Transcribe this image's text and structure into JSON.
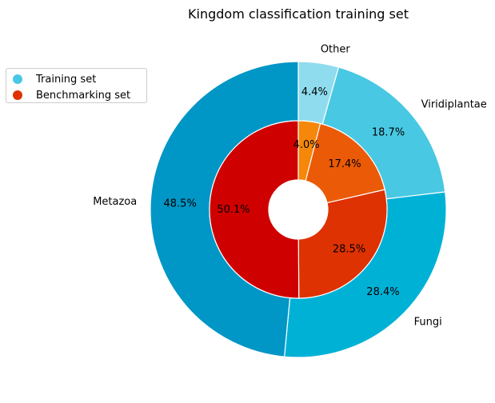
{
  "chart_data": {
    "type": "pie",
    "variant": "nested-donut",
    "title": "Kingdom classification training set",
    "categories": [
      "Other",
      "Viridiplantae",
      "Fungi",
      "Metazoa"
    ],
    "series": [
      {
        "name": "Training set",
        "ring": "outer",
        "values": [
          4.4,
          18.7,
          28.4,
          48.5
        ],
        "labels": [
          "4.4%",
          "18.7%",
          "28.4%",
          "48.5%"
        ],
        "colors": [
          "#8fdcee",
          "#48c8e3",
          "#00b1d6",
          "#0096c6"
        ],
        "legend_color": "#48c8e3"
      },
      {
        "name": "Benchmarking set",
        "ring": "inner",
        "values": [
          4.0,
          17.4,
          28.5,
          50.1
        ],
        "labels": [
          "4.0%",
          "17.4%",
          "28.5%",
          "50.1%"
        ],
        "colors": [
          "#f5870a",
          "#eb5a06",
          "#de3202",
          "#cf0100"
        ],
        "legend_color": "#de3202"
      }
    ],
    "start": "top",
    "direction": "clockwise",
    "legend_position": "upper-left"
  }
}
